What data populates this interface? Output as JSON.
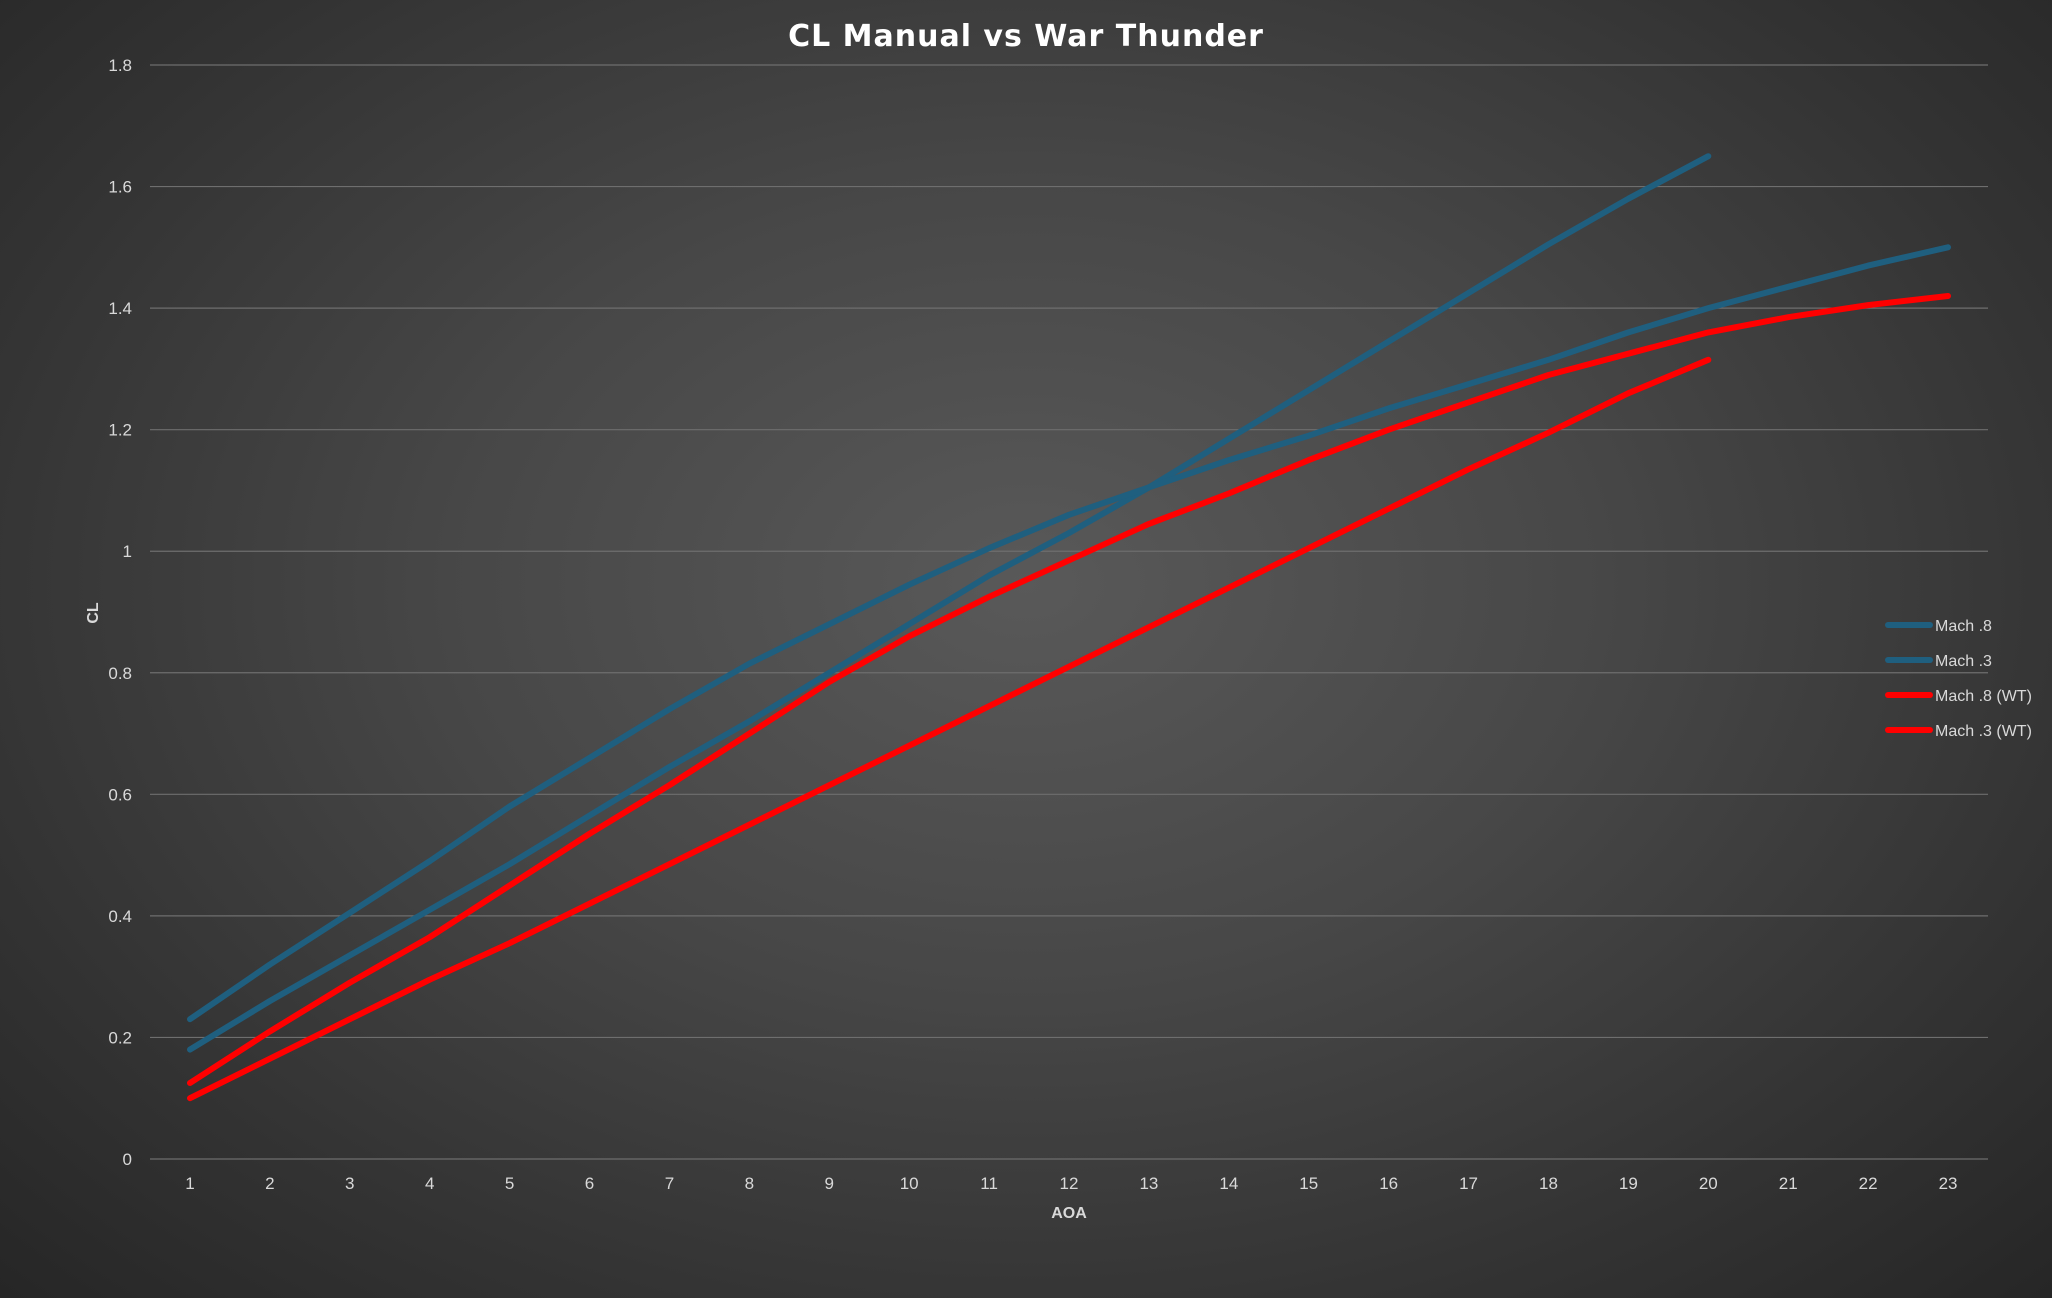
{
  "chart_data": {
    "type": "line",
    "title": "CL Manual vs War Thunder",
    "xlabel": "AOA",
    "ylabel": "CL",
    "x": [
      1,
      2,
      3,
      4,
      5,
      6,
      7,
      8,
      9,
      10,
      11,
      12,
      13,
      14,
      15,
      16,
      17,
      18,
      19,
      20,
      21,
      22,
      23
    ],
    "ylim": [
      0,
      1.8
    ],
    "yticks": [
      0,
      0.2,
      0.4,
      0.6,
      0.8,
      1,
      1.2,
      1.4,
      1.6,
      1.8
    ],
    "ytick_labels": [
      "0",
      "0.2",
      "0.4",
      "0.6",
      "0.8",
      "1",
      "1.2",
      "1.4",
      "1.6",
      "1.8"
    ],
    "grid": "horizontal",
    "legend_position": "right",
    "series": [
      {
        "name": "Mach .8",
        "color": "#1f5f7f",
        "values": [
          0.18,
          0.26,
          0.335,
          0.41,
          0.485,
          0.565,
          0.645,
          0.72,
          0.8,
          0.88,
          0.96,
          1.03,
          1.105,
          1.185,
          1.265,
          1.345,
          1.425,
          1.505,
          1.58,
          1.65,
          null,
          null,
          null
        ]
      },
      {
        "name": "Mach .3",
        "color": "#1f5f7f",
        "values": [
          0.23,
          0.32,
          0.405,
          0.49,
          0.58,
          0.66,
          0.74,
          0.815,
          0.88,
          0.945,
          1.005,
          1.06,
          1.105,
          1.15,
          1.19,
          1.235,
          1.275,
          1.315,
          1.36,
          1.4,
          1.435,
          1.47,
          1.5
        ]
      },
      {
        "name": "Mach .8 (WT)",
        "color": "#ff0000",
        "values": [
          0.1,
          0.165,
          0.23,
          0.295,
          0.355,
          0.42,
          0.485,
          0.55,
          0.615,
          0.68,
          0.745,
          0.81,
          0.875,
          0.94,
          1.005,
          1.07,
          1.135,
          1.195,
          1.26,
          1.315,
          null,
          null,
          null
        ]
      },
      {
        "name": "Mach .3 (WT)",
        "color": "#ff0000",
        "values": [
          0.125,
          0.21,
          0.29,
          0.365,
          0.45,
          0.535,
          0.615,
          0.7,
          0.785,
          0.86,
          0.925,
          0.985,
          1.045,
          1.095,
          1.15,
          1.2,
          1.245,
          1.29,
          1.325,
          1.36,
          1.385,
          1.405,
          1.42
        ]
      }
    ]
  }
}
